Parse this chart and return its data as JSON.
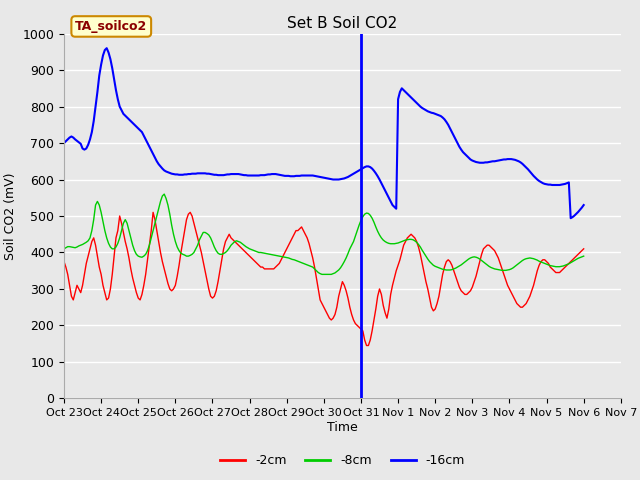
{
  "title": "Set B Soil CO2",
  "ylabel": "Soil CO2 (mV)",
  "xlabel": "Time",
  "ylim": [
    0,
    1000
  ],
  "background_color": "#e8e8e8",
  "plot_bg_color": "#e8e8e8",
  "grid_color": "#ffffff",
  "vline_x": 8.0,
  "vline_color": "#0000ff",
  "legend_label": "TA_soilco2",
  "series_labels": [
    "-2cm",
    "-8cm",
    "-16cm"
  ],
  "series_colors": [
    "#ff0000",
    "#00cc00",
    "#0000ff"
  ],
  "xtick_labels": [
    "Oct 23",
    "Oct 24",
    "Oct 25",
    "Oct 26",
    "Oct 27",
    "Oct 28",
    "Oct 29",
    "Oct 30",
    "Oct 31",
    "Nov 1",
    "Nov 2",
    "Nov 3",
    "Nov 4",
    "Nov 5",
    "Nov 6",
    "Nov 7"
  ],
  "red_x": [
    0,
    0.05,
    0.1,
    0.15,
    0.2,
    0.25,
    0.3,
    0.35,
    0.4,
    0.45,
    0.5,
    0.55,
    0.6,
    0.65,
    0.7,
    0.75,
    0.8,
    0.85,
    0.9,
    0.95,
    1.0,
    1.05,
    1.1,
    1.15,
    1.2,
    1.25,
    1.3,
    1.35,
    1.4,
    1.45,
    1.5,
    1.55,
    1.6,
    1.65,
    1.7,
    1.75,
    1.8,
    1.85,
    1.9,
    1.95,
    2.0,
    2.05,
    2.1,
    2.15,
    2.2,
    2.25,
    2.3,
    2.35,
    2.4,
    2.45,
    2.5,
    2.55,
    2.6,
    2.65,
    2.7,
    2.75,
    2.8,
    2.85,
    2.9,
    2.95,
    3.0,
    3.05,
    3.1,
    3.15,
    3.2,
    3.25,
    3.3,
    3.35,
    3.4,
    3.45,
    3.5,
    3.55,
    3.6,
    3.65,
    3.7,
    3.75,
    3.8,
    3.85,
    3.9,
    3.95,
    4.0,
    4.05,
    4.1,
    4.15,
    4.2,
    4.25,
    4.3,
    4.35,
    4.4,
    4.45,
    4.5,
    4.55,
    4.6,
    4.65,
    4.7,
    4.75,
    4.8,
    4.85,
    4.9,
    4.95,
    5.0,
    5.05,
    5.1,
    5.15,
    5.2,
    5.25,
    5.3,
    5.35,
    5.4,
    5.45,
    5.5,
    5.55,
    5.6,
    5.65,
    5.7,
    5.75,
    5.8,
    5.85,
    5.9,
    5.95,
    6.0,
    6.05,
    6.1,
    6.15,
    6.2,
    6.25,
    6.3,
    6.35,
    6.4,
    6.45,
    6.5,
    6.55,
    6.6,
    6.65,
    6.7,
    6.75,
    6.8,
    6.85,
    6.9,
    6.95,
    7.0,
    7.05,
    7.1,
    7.15,
    7.2,
    7.25,
    7.3,
    7.35,
    7.4,
    7.45,
    7.5,
    7.55,
    7.6,
    7.65,
    7.7,
    7.75,
    7.8,
    7.85,
    7.9,
    7.95,
    8.0,
    8.05,
    8.1,
    8.15,
    8.2,
    8.25,
    8.3,
    8.35,
    8.4,
    8.45,
    8.5,
    8.55,
    8.6,
    8.65,
    8.7,
    8.75,
    8.8,
    8.85,
    8.9,
    8.95,
    9.0,
    9.05,
    9.1,
    9.15,
    9.2,
    9.25,
    9.3,
    9.35,
    9.4,
    9.45,
    9.5,
    9.55,
    9.6,
    9.65,
    9.7,
    9.75,
    9.8,
    9.85,
    9.9,
    9.95,
    10.0,
    10.05,
    10.1,
    10.15,
    10.2,
    10.25,
    10.3,
    10.35,
    10.4,
    10.45,
    10.5,
    10.55,
    10.6,
    10.65,
    10.7,
    10.75,
    10.8,
    10.85,
    10.9,
    10.95,
    11.0,
    11.05,
    11.1,
    11.15,
    11.2,
    11.25,
    11.3,
    11.35,
    11.4,
    11.45,
    11.5,
    11.55,
    11.6,
    11.65,
    11.7,
    11.75,
    11.8,
    11.85,
    11.9,
    11.95,
    12.0,
    12.05,
    12.1,
    12.15,
    12.2,
    12.25,
    12.3,
    12.35,
    12.4,
    12.45,
    12.5,
    12.55,
    12.6,
    12.65,
    12.7,
    12.75,
    12.8,
    12.85,
    12.9,
    12.95,
    13.0,
    13.05,
    13.1,
    13.15,
    13.2,
    13.25,
    13.3,
    13.35,
    13.4,
    13.45,
    13.5,
    13.55,
    13.6,
    13.65,
    13.7,
    13.75,
    13.8,
    13.85,
    13.9,
    13.95,
    14.0
  ],
  "red_y": [
    375,
    360,
    340,
    310,
    280,
    270,
    290,
    310,
    300,
    290,
    310,
    340,
    370,
    390,
    410,
    430,
    440,
    420,
    390,
    360,
    340,
    310,
    290,
    270,
    275,
    300,
    340,
    390,
    440,
    460,
    500,
    480,
    455,
    430,
    410,
    385,
    355,
    330,
    310,
    290,
    275,
    270,
    285,
    310,
    340,
    380,
    420,
    460,
    510,
    490,
    460,
    430,
    400,
    375,
    355,
    335,
    315,
    300,
    295,
    300,
    310,
    335,
    365,
    400,
    430,
    460,
    490,
    505,
    510,
    500,
    480,
    460,
    440,
    420,
    400,
    375,
    350,
    325,
    300,
    280,
    275,
    280,
    295,
    320,
    350,
    380,
    410,
    430,
    440,
    450,
    440,
    435,
    430,
    425,
    420,
    415,
    410,
    405,
    400,
    395,
    390,
    385,
    380,
    375,
    370,
    365,
    360,
    360,
    355,
    355,
    355,
    355,
    355,
    355,
    360,
    365,
    370,
    380,
    390,
    400,
    410,
    420,
    430,
    440,
    450,
    460,
    460,
    465,
    470,
    460,
    450,
    440,
    425,
    405,
    385,
    360,
    330,
    300,
    270,
    260,
    250,
    240,
    230,
    220,
    215,
    220,
    230,
    250,
    280,
    300,
    320,
    310,
    295,
    275,
    250,
    230,
    215,
    205,
    200,
    195,
    190,
    185,
    160,
    145,
    145,
    160,
    185,
    215,
    245,
    280,
    300,
    285,
    255,
    235,
    220,
    245,
    285,
    310,
    330,
    350,
    365,
    380,
    400,
    420,
    430,
    440,
    445,
    450,
    445,
    440,
    430,
    415,
    395,
    370,
    345,
    320,
    300,
    275,
    250,
    240,
    245,
    260,
    280,
    310,
    340,
    360,
    375,
    380,
    375,
    365,
    350,
    335,
    320,
    305,
    295,
    290,
    285,
    285,
    290,
    295,
    305,
    320,
    335,
    355,
    375,
    395,
    410,
    415,
    420,
    420,
    415,
    410,
    405,
    395,
    385,
    370,
    355,
    340,
    325,
    310,
    300,
    290,
    280,
    270,
    260,
    255,
    250,
    250,
    255,
    260,
    270,
    280,
    295,
    310,
    330,
    350,
    365,
    375,
    380,
    380,
    375,
    370,
    360,
    355,
    350,
    345,
    345,
    345,
    350,
    355,
    360,
    365,
    370,
    375,
    380,
    385,
    390,
    395,
    400,
    405,
    410
  ],
  "green_x": [
    0,
    0.05,
    0.1,
    0.15,
    0.2,
    0.25,
    0.3,
    0.35,
    0.4,
    0.45,
    0.5,
    0.55,
    0.6,
    0.65,
    0.7,
    0.75,
    0.8,
    0.85,
    0.9,
    0.95,
    1.0,
    1.05,
    1.1,
    1.15,
    1.2,
    1.25,
    1.3,
    1.35,
    1.4,
    1.45,
    1.5,
    1.55,
    1.6,
    1.65,
    1.7,
    1.75,
    1.8,
    1.85,
    1.9,
    1.95,
    2.0,
    2.05,
    2.1,
    2.15,
    2.2,
    2.25,
    2.3,
    2.35,
    2.4,
    2.45,
    2.5,
    2.55,
    2.6,
    2.65,
    2.7,
    2.75,
    2.8,
    2.85,
    2.9,
    2.95,
    3.0,
    3.05,
    3.1,
    3.15,
    3.2,
    3.25,
    3.3,
    3.35,
    3.4,
    3.45,
    3.5,
    3.55,
    3.6,
    3.65,
    3.7,
    3.75,
    3.8,
    3.85,
    3.9,
    3.95,
    4.0,
    4.05,
    4.1,
    4.15,
    4.2,
    4.25,
    4.3,
    4.35,
    4.4,
    4.45,
    4.5,
    4.55,
    4.6,
    4.65,
    4.7,
    4.75,
    4.8,
    4.85,
    4.9,
    4.95,
    5.0,
    5.05,
    5.1,
    5.15,
    5.2,
    5.25,
    5.3,
    5.35,
    5.4,
    5.45,
    5.5,
    5.55,
    5.6,
    5.65,
    5.7,
    5.75,
    5.8,
    5.85,
    5.9,
    5.95,
    6.0,
    6.05,
    6.1,
    6.15,
    6.2,
    6.25,
    6.3,
    6.35,
    6.4,
    6.45,
    6.5,
    6.55,
    6.6,
    6.65,
    6.7,
    6.75,
    6.8,
    6.85,
    6.9,
    6.95,
    7.0,
    7.05,
    7.1,
    7.15,
    7.2,
    7.25,
    7.3,
    7.35,
    7.4,
    7.45,
    7.5,
    7.55,
    7.6,
    7.65,
    7.7,
    7.75,
    7.8,
    7.85,
    7.9,
    7.95,
    8.0,
    8.05,
    8.1,
    8.15,
    8.2,
    8.25,
    8.3,
    8.35,
    8.4,
    8.45,
    8.5,
    8.55,
    8.6,
    8.65,
    8.7,
    8.75,
    8.8,
    8.85,
    8.9,
    8.95,
    9.0,
    9.05,
    9.1,
    9.15,
    9.2,
    9.25,
    9.3,
    9.35,
    9.4,
    9.45,
    9.5,
    9.55,
    9.6,
    9.65,
    9.7,
    9.75,
    9.8,
    9.85,
    9.9,
    9.95,
    10.0,
    10.05,
    10.1,
    10.15,
    10.2,
    10.25,
    10.3,
    10.35,
    10.4,
    10.45,
    10.5,
    10.55,
    10.6,
    10.65,
    10.7,
    10.75,
    10.8,
    10.85,
    10.9,
    10.95,
    11.0,
    11.05,
    11.1,
    11.15,
    11.2,
    11.25,
    11.3,
    11.35,
    11.4,
    11.45,
    11.5,
    11.55,
    11.6,
    11.65,
    11.7,
    11.75,
    11.8,
    11.85,
    11.9,
    11.95,
    12.0,
    12.05,
    12.1,
    12.15,
    12.2,
    12.25,
    12.3,
    12.35,
    12.4,
    12.45,
    12.5,
    12.55,
    12.6,
    12.65,
    12.7,
    12.75,
    12.8,
    12.85,
    12.9,
    12.95,
    13.0,
    13.05,
    13.1,
    13.15,
    13.2,
    13.25,
    13.3,
    13.35,
    13.4,
    13.45,
    13.5,
    13.55,
    13.6,
    13.65,
    13.7,
    13.75,
    13.8,
    13.85,
    13.9,
    13.95,
    14.0
  ],
  "green_y": [
    410,
    413,
    416,
    416,
    415,
    414,
    413,
    415,
    418,
    420,
    422,
    425,
    428,
    432,
    440,
    460,
    490,
    530,
    540,
    530,
    510,
    485,
    460,
    440,
    425,
    415,
    410,
    410,
    415,
    425,
    440,
    460,
    480,
    490,
    480,
    460,
    440,
    420,
    405,
    395,
    390,
    388,
    387,
    390,
    395,
    405,
    420,
    440,
    460,
    480,
    500,
    520,
    540,
    555,
    560,
    548,
    530,
    505,
    475,
    450,
    430,
    415,
    405,
    398,
    395,
    393,
    390,
    390,
    392,
    395,
    400,
    410,
    420,
    435,
    445,
    455,
    455,
    452,
    448,
    440,
    428,
    415,
    405,
    398,
    395,
    395,
    397,
    400,
    405,
    412,
    420,
    425,
    430,
    432,
    430,
    428,
    424,
    420,
    416,
    413,
    410,
    408,
    406,
    404,
    402,
    400,
    400,
    399,
    398,
    397,
    396,
    395,
    394,
    393,
    392,
    391,
    390,
    389,
    388,
    387,
    386,
    385,
    383,
    381,
    380,
    378,
    376,
    374,
    372,
    370,
    368,
    366,
    364,
    362,
    360,
    355,
    350,
    345,
    342,
    340,
    340,
    340,
    340,
    340,
    340,
    342,
    344,
    348,
    352,
    358,
    366,
    375,
    385,
    397,
    410,
    420,
    430,
    445,
    460,
    475,
    488,
    498,
    505,
    508,
    507,
    502,
    494,
    483,
    470,
    458,
    448,
    440,
    434,
    430,
    427,
    425,
    424,
    424,
    424,
    425,
    426,
    428,
    430,
    432,
    434,
    435,
    436,
    436,
    435,
    432,
    428,
    422,
    415,
    406,
    398,
    390,
    382,
    375,
    370,
    365,
    362,
    360,
    358,
    356,
    354,
    353,
    352,
    352,
    352,
    353,
    355,
    357,
    360,
    363,
    366,
    370,
    374,
    378,
    382,
    385,
    387,
    388,
    387,
    385,
    382,
    378,
    374,
    370,
    366,
    362,
    359,
    357,
    355,
    354,
    353,
    352,
    351,
    351,
    351,
    352,
    353,
    355,
    358,
    362,
    366,
    370,
    374,
    378,
    381,
    383,
    384,
    385,
    384,
    383,
    381,
    379,
    376,
    374,
    372,
    370,
    368,
    366,
    364,
    363,
    362,
    361,
    361,
    361,
    362,
    363,
    365,
    367,
    369,
    372,
    375,
    378,
    381,
    384,
    386,
    388,
    390
  ],
  "blue_x": [
    0,
    0.05,
    0.1,
    0.15,
    0.2,
    0.25,
    0.3,
    0.35,
    0.4,
    0.45,
    0.5,
    0.55,
    0.6,
    0.65,
    0.7,
    0.75,
    0.8,
    0.85,
    0.9,
    0.95,
    1.0,
    1.05,
    1.1,
    1.15,
    1.2,
    1.25,
    1.3,
    1.35,
    1.4,
    1.45,
    1.5,
    1.55,
    1.6,
    1.65,
    1.7,
    1.75,
    1.8,
    1.85,
    1.9,
    1.95,
    2.0,
    2.05,
    2.1,
    2.15,
    2.2,
    2.25,
    2.3,
    2.35,
    2.4,
    2.45,
    2.5,
    2.55,
    2.6,
    2.65,
    2.7,
    2.75,
    2.8,
    2.85,
    2.9,
    2.95,
    3.0,
    3.05,
    3.1,
    3.15,
    3.2,
    3.25,
    3.3,
    3.35,
    3.4,
    3.45,
    3.5,
    3.55,
    3.6,
    3.65,
    3.7,
    3.75,
    3.8,
    3.85,
    3.9,
    3.95,
    4.0,
    4.05,
    4.1,
    4.15,
    4.2,
    4.25,
    4.3,
    4.35,
    4.4,
    4.45,
    4.5,
    4.55,
    4.6,
    4.65,
    4.7,
    4.75,
    4.8,
    4.85,
    4.9,
    4.95,
    5.0,
    5.05,
    5.1,
    5.15,
    5.2,
    5.25,
    5.3,
    5.35,
    5.4,
    5.45,
    5.5,
    5.55,
    5.6,
    5.65,
    5.7,
    5.75,
    5.8,
    5.85,
    5.9,
    5.95,
    6.0,
    6.05,
    6.1,
    6.15,
    6.2,
    6.25,
    6.3,
    6.35,
    6.4,
    6.45,
    6.5,
    6.55,
    6.6,
    6.65,
    6.7,
    6.75,
    6.8,
    6.85,
    6.9,
    6.95,
    7.0,
    7.05,
    7.1,
    7.15,
    7.2,
    7.25,
    7.3,
    7.35,
    7.4,
    7.45,
    7.5,
    7.55,
    7.6,
    7.65,
    7.7,
    7.75,
    7.8,
    7.85,
    7.9,
    7.95,
    8.0,
    8.05,
    8.1,
    8.15,
    8.2,
    8.25,
    8.3,
    8.35,
    8.4,
    8.45,
    8.5,
    8.55,
    8.6,
    8.65,
    8.7,
    8.75,
    8.8,
    8.85,
    8.9,
    8.95,
    9.0,
    9.05,
    9.1,
    9.15,
    9.2,
    9.25,
    9.3,
    9.35,
    9.4,
    9.45,
    9.5,
    9.55,
    9.6,
    9.65,
    9.7,
    9.75,
    9.8,
    9.85,
    9.9,
    9.95,
    10.0,
    10.05,
    10.1,
    10.15,
    10.2,
    10.25,
    10.3,
    10.35,
    10.4,
    10.45,
    10.5,
    10.55,
    10.6,
    10.65,
    10.7,
    10.75,
    10.8,
    10.85,
    10.9,
    10.95,
    11.0,
    11.05,
    11.1,
    11.15,
    11.2,
    11.25,
    11.3,
    11.35,
    11.4,
    11.45,
    11.5,
    11.55,
    11.6,
    11.65,
    11.7,
    11.75,
    11.8,
    11.85,
    11.9,
    11.95,
    12.0,
    12.05,
    12.1,
    12.15,
    12.2,
    12.25,
    12.3,
    12.35,
    12.4,
    12.45,
    12.5,
    12.55,
    12.6,
    12.65,
    12.7,
    12.75,
    12.8,
    12.85,
    12.9,
    12.95,
    13.0,
    13.05,
    13.1,
    13.15,
    13.2,
    13.25,
    13.3,
    13.35,
    13.4,
    13.45,
    13.5,
    13.55,
    13.6,
    13.65,
    13.7,
    13.75,
    13.8,
    13.85,
    13.9,
    13.95,
    14.0
  ],
  "blue_y": [
    700,
    705,
    710,
    715,
    718,
    715,
    710,
    706,
    702,
    698,
    685,
    682,
    685,
    695,
    710,
    730,
    760,
    800,
    840,
    885,
    915,
    940,
    955,
    960,
    948,
    930,
    905,
    875,
    845,
    820,
    800,
    790,
    780,
    775,
    770,
    765,
    760,
    755,
    750,
    745,
    740,
    735,
    730,
    720,
    710,
    700,
    690,
    680,
    670,
    660,
    650,
    642,
    636,
    630,
    625,
    622,
    620,
    618,
    616,
    615,
    614,
    614,
    613,
    613,
    613,
    614,
    614,
    615,
    615,
    616,
    616,
    616,
    617,
    617,
    617,
    617,
    617,
    616,
    616,
    615,
    614,
    613,
    613,
    612,
    612,
    612,
    612,
    613,
    614,
    614,
    615,
    615,
    615,
    615,
    615,
    614,
    613,
    612,
    612,
    611,
    611,
    611,
    611,
    611,
    611,
    611,
    612,
    612,
    612,
    613,
    614,
    614,
    615,
    615,
    615,
    614,
    613,
    612,
    611,
    610,
    610,
    610,
    609,
    609,
    609,
    610,
    610,
    610,
    611,
    611,
    611,
    611,
    611,
    611,
    611,
    610,
    609,
    608,
    607,
    606,
    605,
    604,
    603,
    602,
    601,
    600,
    600,
    600,
    600,
    601,
    602,
    603,
    605,
    607,
    610,
    613,
    616,
    619,
    622,
    625,
    628,
    631,
    634,
    636,
    636,
    634,
    630,
    624,
    617,
    609,
    600,
    590,
    580,
    570,
    560,
    550,
    540,
    530,
    525,
    520,
    820,
    840,
    850,
    845,
    840,
    835,
    830,
    825,
    820,
    815,
    810,
    805,
    800,
    796,
    793,
    790,
    787,
    785,
    783,
    782,
    780,
    778,
    776,
    774,
    770,
    765,
    758,
    750,
    740,
    730,
    720,
    710,
    700,
    690,
    682,
    675,
    670,
    665,
    660,
    655,
    652,
    650,
    648,
    647,
    646,
    646,
    646,
    647,
    647,
    648,
    649,
    650,
    650,
    651,
    652,
    653,
    654,
    655,
    655,
    656,
    656,
    656,
    655,
    654,
    652,
    650,
    647,
    643,
    638,
    633,
    628,
    622,
    616,
    610,
    605,
    600,
    596,
    593,
    590,
    588,
    587,
    586,
    586,
    585,
    585,
    585,
    585,
    585,
    586,
    587,
    588,
    590,
    592,
    494,
    497,
    501,
    506,
    511,
    517,
    523,
    530
  ]
}
